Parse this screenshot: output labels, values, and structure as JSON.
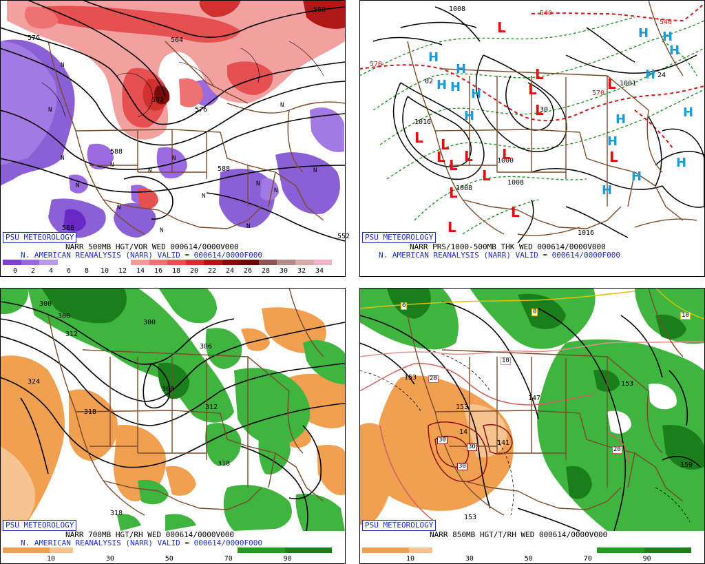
{
  "panels": [
    {
      "badge": "PSU METEOROLOGY",
      "line1": "NARR 500MB HGT/VOR WED 000614/0000V000",
      "line2": "N. AMERICAN REANALYSIS (NARR) VALID = 000614/0000F000",
      "colorbar": [
        "#7e3fd1",
        "#9b6ae0",
        "#b89aec",
        "#ffffff",
        "#ffffff",
        "#ffffff",
        "#ffffff",
        "#f39a9a",
        "#ee7272",
        "#e55050",
        "#cf3030",
        "#b01818",
        "#8a0a0a",
        "#6a0000",
        "#8f5252",
        "#b58a8a",
        "#d9aaaa",
        "#f2b4c8"
      ],
      "ticks": [
        "0",
        "2",
        "4",
        "6",
        "8",
        "10",
        "12",
        "14",
        "16",
        "18",
        "20",
        "22",
        "24",
        "26",
        "28",
        "30",
        "32",
        "34"
      ],
      "labels": [
        "576",
        "564",
        "576",
        "588",
        "588",
        "588",
        "588",
        "552",
        "552"
      ],
      "symbols": [
        "N",
        "N",
        "N",
        "N",
        "N",
        "N",
        "N",
        "N",
        "N",
        "N",
        "N",
        "N",
        "N",
        "N",
        "N"
      ]
    },
    {
      "badge": "PSU METEOROLOGY",
      "line1": "NARR PRS/1000-500MB THK WED 000614/0000V000",
      "line2": "N. AMERICAN REANALYSIS (NARR) VALID = 000614/0000F000",
      "labels": [
        "1008",
        "540",
        "540",
        "570",
        "02",
        "1016",
        "1000",
        "1008",
        "1008",
        "1016",
        "24",
        "570",
        "1001",
        "30"
      ],
      "symbols": [
        "L",
        "L",
        "L",
        "L",
        "L",
        "L",
        "L",
        "L",
        "L",
        "L",
        "L",
        "L",
        "L",
        "L",
        "L",
        "L",
        "H",
        "H",
        "H",
        "H",
        "H",
        "H",
        "H",
        "H",
        "H",
        "H",
        "H",
        "H",
        "H",
        "H",
        "H",
        "H"
      ]
    },
    {
      "badge": "PSU METEOROLOGY",
      "line1": "NARR 700MB HGT/RH WED 000614/0000V000",
      "line2": "N. AMERICAN REANALYSIS (NARR) VALID = 000614/0000F000",
      "colorbar": [
        "#f0a050",
        "#f0a050",
        "#f6c490",
        "#ffffff",
        "#ffffff",
        "#ffffff",
        "#ffffff",
        "#ffffff",
        "#ffffff",
        "#ffffff",
        "#1f9e1f",
        "#1f9e1f",
        "#1a7f1a",
        "#1a7f1a"
      ],
      "ticks": [
        "10",
        "30",
        "50",
        "70",
        "90"
      ],
      "labels": [
        "300",
        "306",
        "312",
        "324",
        "318",
        "300",
        "306",
        "300",
        "312",
        "318",
        "318"
      ]
    },
    {
      "badge": "PSU METEOROLOGY",
      "line1": "NARR 850MB HGT/T/RH WED 000614/0000V000",
      "line2": "",
      "colorbar": [
        "#f0a050",
        "#f0a050",
        "#f6c490",
        "#ffffff",
        "#ffffff",
        "#ffffff",
        "#ffffff",
        "#ffffff",
        "#ffffff",
        "#ffffff",
        "#1f9e1f",
        "#1f9e1f",
        "#1a7f1a",
        "#1a7f1a"
      ],
      "ticks": [
        "10",
        "30",
        "50",
        "70",
        "90"
      ],
      "labels": [
        "0",
        "0",
        "10",
        "10",
        "20",
        "30",
        "30",
        "30",
        "20",
        "153",
        "153",
        "14",
        "141",
        "147",
        "153",
        "153",
        "159"
      ]
    }
  ]
}
